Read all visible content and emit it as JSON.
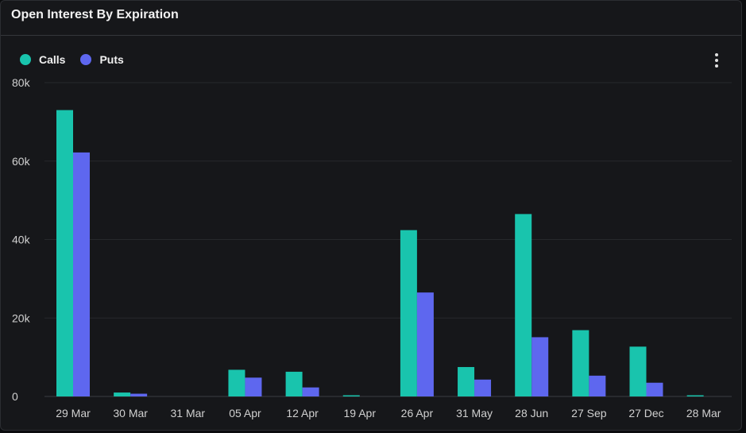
{
  "header": {
    "title": "Open Interest By Expiration"
  },
  "legend": {
    "items": [
      {
        "label": "Calls",
        "color": "#19c4ad"
      },
      {
        "label": "Puts",
        "color": "#5e67ef"
      }
    ]
  },
  "menu": {
    "icon": "more-vertical-icon"
  },
  "chart_data": {
    "type": "bar",
    "title": "Open Interest By Expiration",
    "xlabel": "",
    "ylabel": "",
    "ylim": [
      0,
      80000
    ],
    "yticks": [
      0,
      20000,
      40000,
      60000,
      80000
    ],
    "ytick_labels": [
      "0",
      "20k",
      "40k",
      "60k",
      "80k"
    ],
    "grid": true,
    "legend_position": "top-left",
    "categories": [
      "29 Mar",
      "30 Mar",
      "31 Mar",
      "05 Apr",
      "12 Apr",
      "19 Apr",
      "26 Apr",
      "31 May",
      "28 Jun",
      "27 Sep",
      "27 Dec",
      "28 Mar"
    ],
    "series": [
      {
        "name": "Calls",
        "color": "#19c4ad",
        "values": [
          73000,
          1000,
          0,
          6800,
          6300,
          300,
          42400,
          7500,
          46500,
          16900,
          12700,
          300
        ]
      },
      {
        "name": "Puts",
        "color": "#5e67ef",
        "values": [
          62200,
          700,
          0,
          4800,
          2300,
          0,
          26500,
          4300,
          15100,
          5300,
          3500,
          0
        ]
      }
    ]
  }
}
